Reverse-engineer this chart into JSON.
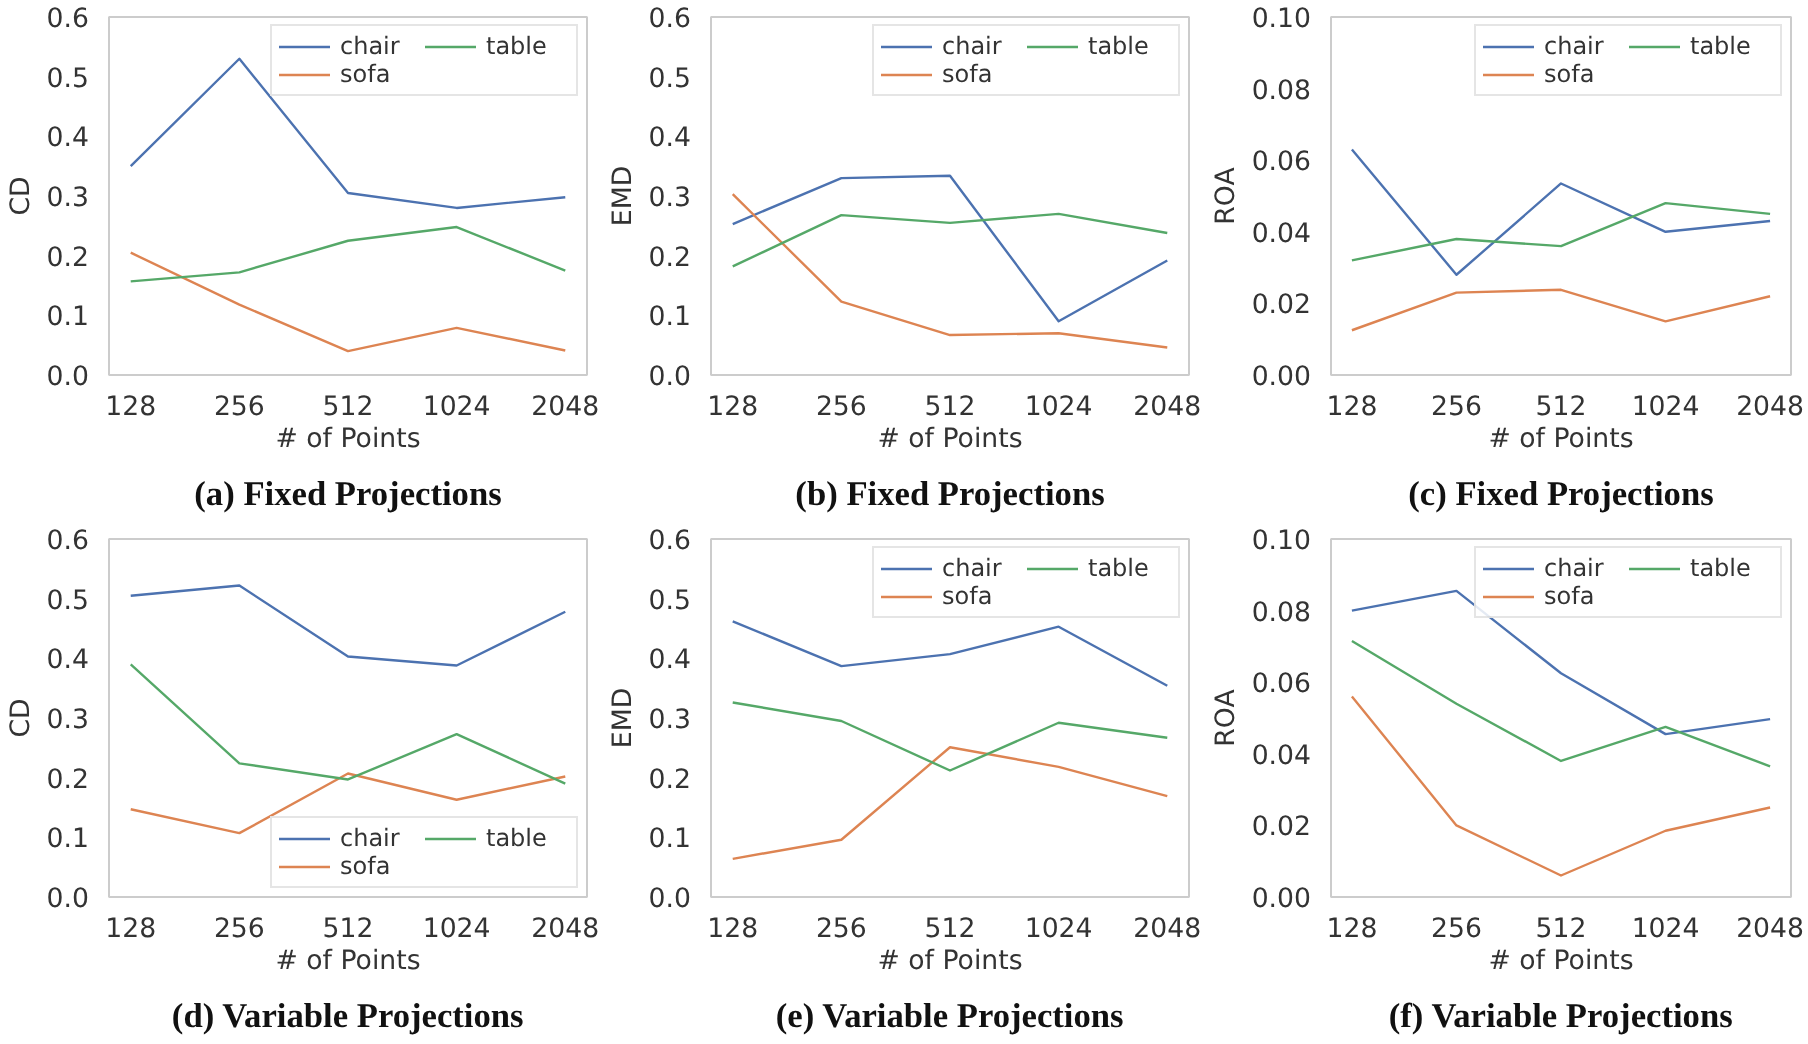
{
  "chart_data": [
    {
      "type": "line",
      "title": "(a) Fixed Projections",
      "xlabel": "# of Points",
      "ylabel": "CD",
      "categories": [
        "128",
        "256",
        "512",
        "1024",
        "2048"
      ],
      "ylim": [
        0,
        0.6
      ],
      "yticks": [
        {
          "value": 0,
          "label": "0.0"
        },
        {
          "value": 0.1,
          "label": "0.1"
        },
        {
          "value": 0.2,
          "label": "0.2"
        },
        {
          "value": 0.3,
          "label": "0.3"
        },
        {
          "value": 0.4,
          "label": "0.4"
        },
        {
          "value": 0.5,
          "label": "0.5"
        },
        {
          "value": 0.6,
          "label": "0.6"
        }
      ],
      "legend": "top right",
      "grid": false,
      "series": [
        {
          "name": "chair",
          "color": "#4c72b0",
          "values": [
            0.35,
            0.53,
            0.305,
            0.28,
            0.298
          ]
        },
        {
          "name": "sofa",
          "color": "#dd8452",
          "values": [
            0.205,
            0.118,
            0.04,
            0.079,
            0.041
          ]
        },
        {
          "name": "table",
          "color": "#55a868",
          "values": [
            0.157,
            0.172,
            0.225,
            0.248,
            0.175
          ]
        }
      ]
    },
    {
      "type": "line",
      "title": "(b) Fixed Projections",
      "xlabel": "# of Points",
      "ylabel": "EMD",
      "categories": [
        "128",
        "256",
        "512",
        "1024",
        "2048"
      ],
      "ylim": [
        0,
        0.6
      ],
      "yticks": [
        {
          "value": 0,
          "label": "0.0"
        },
        {
          "value": 0.1,
          "label": "0.1"
        },
        {
          "value": 0.2,
          "label": "0.2"
        },
        {
          "value": 0.3,
          "label": "0.3"
        },
        {
          "value": 0.4,
          "label": "0.4"
        },
        {
          "value": 0.5,
          "label": "0.5"
        },
        {
          "value": 0.6,
          "label": "0.6"
        }
      ],
      "legend": "top right",
      "grid": false,
      "series": [
        {
          "name": "chair",
          "color": "#4c72b0",
          "values": [
            0.253,
            0.33,
            0.334,
            0.09,
            0.192
          ]
        },
        {
          "name": "sofa",
          "color": "#dd8452",
          "values": [
            0.303,
            0.123,
            0.067,
            0.07,
            0.046
          ]
        },
        {
          "name": "table",
          "color": "#55a868",
          "values": [
            0.182,
            0.268,
            0.255,
            0.27,
            0.238
          ]
        }
      ]
    },
    {
      "type": "line",
      "title": "(c) Fixed Projections",
      "xlabel": "# of Points",
      "ylabel": "ROA",
      "categories": [
        "128",
        "256",
        "512",
        "1024",
        "2048"
      ],
      "ylim": [
        0,
        0.1
      ],
      "yticks": [
        {
          "value": 0,
          "label": "0.00"
        },
        {
          "value": 0.02,
          "label": "0.02"
        },
        {
          "value": 0.04,
          "label": "0.04"
        },
        {
          "value": 0.06,
          "label": "0.06"
        },
        {
          "value": 0.08,
          "label": "0.08"
        },
        {
          "value": 0.1,
          "label": "0.10"
        }
      ],
      "legend": "top right",
      "grid": false,
      "series": [
        {
          "name": "chair",
          "color": "#4c72b0",
          "values": [
            0.063,
            0.028,
            0.0535,
            0.04,
            0.043
          ]
        },
        {
          "name": "sofa",
          "color": "#dd8452",
          "values": [
            0.0125,
            0.023,
            0.0238,
            0.015,
            0.022
          ]
        },
        {
          "name": "table",
          "color": "#55a868",
          "values": [
            0.032,
            0.038,
            0.036,
            0.048,
            0.045
          ]
        }
      ]
    },
    {
      "type": "line",
      "title": "(d) Variable Projections",
      "xlabel": "# of Points",
      "ylabel": "CD",
      "categories": [
        "128",
        "256",
        "512",
        "1024",
        "2048"
      ],
      "ylim": [
        0,
        0.6
      ],
      "yticks": [
        {
          "value": 0,
          "label": "0.0"
        },
        {
          "value": 0.1,
          "label": "0.1"
        },
        {
          "value": 0.2,
          "label": "0.2"
        },
        {
          "value": 0.3,
          "label": "0.3"
        },
        {
          "value": 0.4,
          "label": "0.4"
        },
        {
          "value": 0.5,
          "label": "0.5"
        },
        {
          "value": 0.6,
          "label": "0.6"
        }
      ],
      "legend": "bottom right",
      "grid": false,
      "series": [
        {
          "name": "chair",
          "color": "#4c72b0",
          "values": [
            0.505,
            0.522,
            0.403,
            0.388,
            0.478
          ]
        },
        {
          "name": "sofa",
          "color": "#dd8452",
          "values": [
            0.147,
            0.107,
            0.207,
            0.163,
            0.202
          ]
        },
        {
          "name": "table",
          "color": "#55a868",
          "values": [
            0.39,
            0.224,
            0.197,
            0.273,
            0.19
          ]
        }
      ]
    },
    {
      "type": "line",
      "title": "(e) Variable Projections",
      "xlabel": "# of Points",
      "ylabel": "EMD",
      "categories": [
        "128",
        "256",
        "512",
        "1024",
        "2048"
      ],
      "ylim": [
        0,
        0.6
      ],
      "yticks": [
        {
          "value": 0,
          "label": "0.0"
        },
        {
          "value": 0.1,
          "label": "0.1"
        },
        {
          "value": 0.2,
          "label": "0.2"
        },
        {
          "value": 0.3,
          "label": "0.3"
        },
        {
          "value": 0.4,
          "label": "0.4"
        },
        {
          "value": 0.5,
          "label": "0.5"
        },
        {
          "value": 0.6,
          "label": "0.6"
        }
      ],
      "legend": "top right",
      "grid": false,
      "series": [
        {
          "name": "chair",
          "color": "#4c72b0",
          "values": [
            0.462,
            0.387,
            0.407,
            0.453,
            0.354
          ]
        },
        {
          "name": "sofa",
          "color": "#dd8452",
          "values": [
            0.064,
            0.096,
            0.251,
            0.218,
            0.169
          ]
        },
        {
          "name": "table",
          "color": "#55a868",
          "values": [
            0.326,
            0.295,
            0.212,
            0.292,
            0.267
          ]
        }
      ]
    },
    {
      "type": "line",
      "title": "(f) Variable Projections",
      "xlabel": "# of Points",
      "ylabel": "ROA",
      "categories": [
        "128",
        "256",
        "512",
        "1024",
        "2048"
      ],
      "ylim": [
        0,
        0.1
      ],
      "yticks": [
        {
          "value": 0,
          "label": "0.00"
        },
        {
          "value": 0.02,
          "label": "0.02"
        },
        {
          "value": 0.04,
          "label": "0.04"
        },
        {
          "value": 0.06,
          "label": "0.06"
        },
        {
          "value": 0.08,
          "label": "0.08"
        },
        {
          "value": 0.1,
          "label": "0.10"
        }
      ],
      "legend": "top right",
      "grid": false,
      "series": [
        {
          "name": "chair",
          "color": "#4c72b0",
          "values": [
            0.08,
            0.0855,
            0.0625,
            0.0455,
            0.0497
          ]
        },
        {
          "name": "sofa",
          "color": "#dd8452",
          "values": [
            0.056,
            0.02,
            0.006,
            0.0185,
            0.025
          ]
        },
        {
          "name": "table",
          "color": "#55a868",
          "values": [
            0.0715,
            0.054,
            0.038,
            0.0475,
            0.0365
          ]
        }
      ]
    }
  ]
}
